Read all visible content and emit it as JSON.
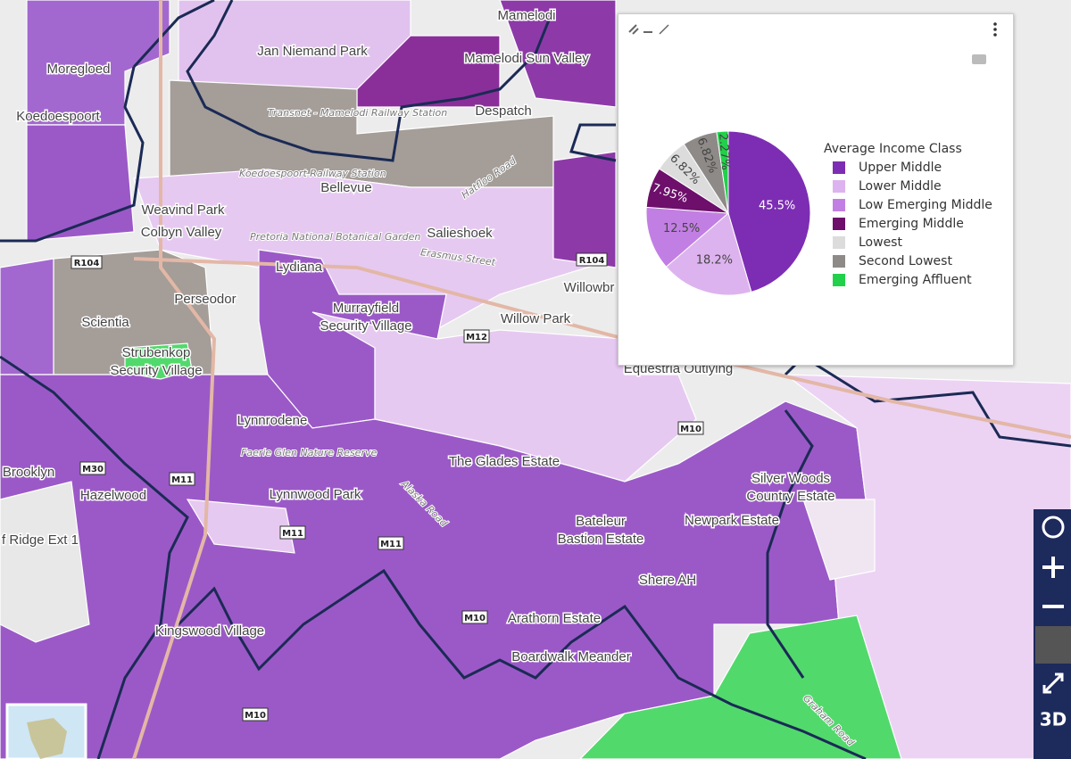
{
  "map": {
    "labels": [
      "Moregloed",
      "Koedoespoort",
      "Jan Niemand Park",
      "Mamelodi Sun Valley",
      "Despatch",
      "Bellevue",
      "Weavind Park",
      "Colbyn Valley",
      "Salieshoek",
      "Lydiana",
      "Perseodor",
      "Scientia",
      "Murrayfield",
      "Security Village",
      "Willow Park",
      "Strubenkop",
      "Security Village",
      "Lynnrodene",
      "The Glades Estate",
      "Brooklyn",
      "Hazelwood",
      "Lynnwood Park",
      "f Ridge Ext 1",
      "Silver Woods",
      "Country Estate",
      "Newpark Estate",
      "Bateleur",
      "Bastion Estate",
      "Shere AH",
      "Arathorn Estate",
      "Kingswood Village",
      "Boardwalk Meander",
      "Willowbr",
      "Equestria Outlying",
      "Mamelodi"
    ],
    "roads": [
      "Erasmus Street",
      "Alaska Road",
      "Graham Road",
      "Hatfloo Road",
      "Transnet - Mamelodi Railway Station",
      "Koedoespoort Railway Station",
      "Pretoria National Botanical Garden",
      "Faerie Glen Nature Reserve"
    ],
    "shields": [
      "R104",
      "M12",
      "M10",
      "M11",
      "M11",
      "M10",
      "M10",
      "R104",
      "M30",
      "M11"
    ],
    "controls": [
      "3D"
    ]
  },
  "chart_data": {
    "type": "pie",
    "legend_title": "Average Income Class",
    "categories": [
      "Upper Middle",
      "Lower Middle",
      "Low Emerging Middle",
      "Emerging Middle",
      "Lowest",
      "Second Lowest",
      "Emerging Affluent"
    ],
    "values": [
      45.5,
      18.2,
      12.5,
      7.95,
      6.82,
      6.82,
      2.27
    ],
    "value_labels": [
      "45.5%",
      "18.2%",
      "12.5%",
      "7.95%",
      "6.82%",
      "6.82%",
      "2.27%"
    ],
    "colors": [
      "#7d2db3",
      "#ddb3ef",
      "#c27fe3",
      "#6d0f6b",
      "#dcdcdc",
      "#8e8a88",
      "#22d14a"
    ],
    "label_colors": [
      "#ffffff",
      "#444444",
      "#444444",
      "#ffffff",
      "#444444",
      "#444444",
      "#444444"
    ],
    "direction": "clockwise",
    "legend": "right"
  }
}
